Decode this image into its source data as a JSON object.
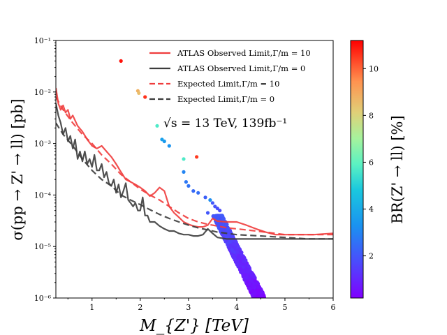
{
  "chart_data": {
    "type": "line+scatter",
    "xlabel": "M_{Z'} [TeV]",
    "ylabel": "σ(pp → Z' → ll) [pb]",
    "xlim": [
      0.25,
      6
    ],
    "ylim_log10": [
      -6,
      -1
    ],
    "x_ticks": [
      1,
      2,
      3,
      4,
      5,
      6
    ],
    "y_ticks": [
      {
        "exp": -6,
        "label": "10⁻⁶"
      },
      {
        "exp": -5,
        "label": "10⁻⁵"
      },
      {
        "exp": -4,
        "label": "10⁻⁴"
      },
      {
        "exp": -3,
        "label": "10⁻³"
      },
      {
        "exp": -2,
        "label": "10⁻²"
      },
      {
        "exp": -1,
        "label": "10⁻¹"
      }
    ],
    "annotation": "√s = 13 TeV, 139fb⁻¹",
    "colorbar": {
      "label": "BR(Z' → ll) [%]",
      "range": [
        0.2,
        11.2
      ],
      "ticks": [
        2,
        4,
        6,
        8,
        10
      ],
      "colormap": "rainbow"
    },
    "series": [
      {
        "name": "ATLAS Observed Limit,Γ/m = 10",
        "style": "solid",
        "color": "#ef3c3c",
        "points": [
          [
            0.25,
            0.012
          ],
          [
            0.3,
            0.006
          ],
          [
            0.35,
            0.0045
          ],
          [
            0.4,
            0.0055
          ],
          [
            0.45,
            0.004
          ],
          [
            0.5,
            0.0045
          ],
          [
            0.55,
            0.003
          ],
          [
            0.6,
            0.0035
          ],
          [
            0.7,
            0.0022
          ],
          [
            0.8,
            0.0017
          ],
          [
            0.9,
            0.0012
          ],
          [
            1.0,
            0.0009
          ],
          [
            1.1,
            0.0008
          ],
          [
            1.2,
            0.0009
          ],
          [
            1.3,
            0.0007
          ],
          [
            1.4,
            0.00055
          ],
          [
            1.5,
            0.0004
          ],
          [
            1.6,
            0.00028
          ],
          [
            1.7,
            0.0002
          ],
          [
            1.8,
            0.00018
          ],
          [
            1.9,
            0.00016
          ],
          [
            2.0,
            0.00014
          ],
          [
            2.1,
            0.00012
          ],
          [
            2.2,
            9.5e-05
          ],
          [
            2.3,
            0.00011
          ],
          [
            2.4,
            0.00014
          ],
          [
            2.5,
            0.00012
          ],
          [
            2.6,
            6e-05
          ],
          [
            2.7,
            4.5e-05
          ],
          [
            2.8,
            3.7e-05
          ],
          [
            2.9,
            3e-05
          ],
          [
            3.0,
            2.7e-05
          ],
          [
            3.1,
            2.5e-05
          ],
          [
            3.2,
            2.4e-05
          ],
          [
            3.3,
            2.4e-05
          ],
          [
            3.4,
            2.6e-05
          ],
          [
            3.5,
            3.5e-05
          ],
          [
            3.6,
            3.1e-05
          ],
          [
            3.8,
            3e-05
          ],
          [
            4.0,
            3e-05
          ],
          [
            4.2,
            2.6e-05
          ],
          [
            4.4,
            2.2e-05
          ],
          [
            4.6,
            1.9e-05
          ],
          [
            4.8,
            1.7e-05
          ],
          [
            5.0,
            1.7e-05
          ],
          [
            5.3,
            1.7e-05
          ],
          [
            5.6,
            1.7e-05
          ],
          [
            6.0,
            1.8e-05
          ]
        ]
      },
      {
        "name": "ATLAS Observed Limit,Γ/m = 0",
        "style": "solid",
        "color": "#3c3c3c",
        "points": [
          [
            0.25,
            0.006
          ],
          [
            0.3,
            0.0035
          ],
          [
            0.35,
            0.0025
          ],
          [
            0.4,
            0.0015
          ],
          [
            0.45,
            0.002
          ],
          [
            0.5,
            0.0011
          ],
          [
            0.55,
            0.0014
          ],
          [
            0.6,
            0.0008
          ],
          [
            0.65,
            0.0012
          ],
          [
            0.7,
            0.0005
          ],
          [
            0.75,
            0.0007
          ],
          [
            0.8,
            0.00045
          ],
          [
            0.85,
            0.0007
          ],
          [
            0.9,
            0.0004
          ],
          [
            0.95,
            0.0005
          ],
          [
            1.0,
            0.00035
          ],
          [
            1.05,
            0.0006
          ],
          [
            1.1,
            0.0003
          ],
          [
            1.15,
            0.0003
          ],
          [
            1.2,
            0.0004
          ],
          [
            1.25,
            0.00022
          ],
          [
            1.3,
            0.00028
          ],
          [
            1.35,
            0.00017
          ],
          [
            1.4,
            0.00015
          ],
          [
            1.45,
            0.0002
          ],
          [
            1.5,
            0.00011
          ],
          [
            1.55,
            0.00016
          ],
          [
            1.6,
            9e-05
          ],
          [
            1.65,
            0.00012
          ],
          [
            1.7,
            0.00017
          ],
          [
            1.75,
            8e-05
          ],
          [
            1.8,
            7e-05
          ],
          [
            1.85,
            6e-05
          ],
          [
            1.9,
            7e-05
          ],
          [
            1.95,
            5e-05
          ],
          [
            2.0,
            5e-05
          ],
          [
            2.05,
            9e-05
          ],
          [
            2.1,
            4e-05
          ],
          [
            2.15,
            4e-05
          ],
          [
            2.2,
            3e-05
          ],
          [
            2.3,
            3e-05
          ],
          [
            2.4,
            2.5e-05
          ],
          [
            2.5,
            2.2e-05
          ],
          [
            2.6,
            2e-05
          ],
          [
            2.7,
            2e-05
          ],
          [
            2.8,
            1.8e-05
          ],
          [
            2.9,
            1.7e-05
          ],
          [
            3.0,
            1.7e-05
          ],
          [
            3.1,
            1.6e-05
          ],
          [
            3.2,
            1.6e-05
          ],
          [
            3.3,
            1.7e-05
          ],
          [
            3.4,
            2.2e-05
          ],
          [
            3.5,
            1.8e-05
          ],
          [
            3.6,
            1.5e-05
          ],
          [
            3.8,
            1.4e-05
          ],
          [
            4.0,
            1.4e-05
          ],
          [
            4.5,
            1.4e-05
          ],
          [
            5.0,
            1.4e-05
          ],
          [
            5.5,
            1.4e-05
          ],
          [
            6.0,
            1.4e-05
          ]
        ]
      },
      {
        "name": "Expected Limit,Γ/m = 10",
        "style": "dashed",
        "color": "#ef3c3c",
        "points": [
          [
            0.25,
            0.008
          ],
          [
            0.4,
            0.0045
          ],
          [
            0.6,
            0.0025
          ],
          [
            0.8,
            0.0015
          ],
          [
            1.0,
            0.001
          ],
          [
            1.2,
            0.0006
          ],
          [
            1.4,
            0.0004
          ],
          [
            1.6,
            0.00025
          ],
          [
            1.8,
            0.00018
          ],
          [
            2.0,
            0.00013
          ],
          [
            2.2,
            0.0001
          ],
          [
            2.4,
            8e-05
          ],
          [
            2.6,
            6e-05
          ],
          [
            2.8,
            4.5e-05
          ],
          [
            3.0,
            3.5e-05
          ],
          [
            3.2,
            3e-05
          ],
          [
            3.4,
            2.7e-05
          ],
          [
            3.6,
            2.5e-05
          ],
          [
            3.8,
            2.3e-05
          ],
          [
            4.0,
            2.2e-05
          ],
          [
            4.2,
            2.1e-05
          ],
          [
            4.4,
            2e-05
          ],
          [
            4.6,
            1.9e-05
          ],
          [
            4.8,
            1.8e-05
          ],
          [
            5.0,
            1.7e-05
          ],
          [
            5.5,
            1.7e-05
          ],
          [
            6.0,
            1.7e-05
          ]
        ]
      },
      {
        "name": "Expected Limit,Γ/m = 0",
        "style": "dashed",
        "color": "#3c3c3c",
        "points": [
          [
            0.25,
            0.0025
          ],
          [
            0.4,
            0.0015
          ],
          [
            0.6,
            0.0009
          ],
          [
            0.8,
            0.0005
          ],
          [
            1.0,
            0.0003
          ],
          [
            1.2,
            0.0002
          ],
          [
            1.4,
            0.00015
          ],
          [
            1.6,
            0.0001
          ],
          [
            1.8,
            8e-05
          ],
          [
            2.0,
            6.5e-05
          ],
          [
            2.2,
            5.2e-05
          ],
          [
            2.4,
            4.2e-05
          ],
          [
            2.6,
            3.5e-05
          ],
          [
            2.8,
            3e-05
          ],
          [
            3.0,
            2.6e-05
          ],
          [
            3.2,
            2.3e-05
          ],
          [
            3.4,
            2.1e-05
          ],
          [
            3.6,
            1.9e-05
          ],
          [
            3.8,
            1.8e-05
          ],
          [
            4.0,
            1.7e-05
          ],
          [
            4.5,
            1.6e-05
          ],
          [
            5.0,
            1.5e-05
          ],
          [
            5.5,
            1.4e-05
          ],
          [
            6.0,
            1.4e-05
          ]
        ]
      }
    ],
    "scatter": {
      "name": "Model points (color = BR(Z' → ll) [%])",
      "points": [
        [
          1.6,
          0.04,
          11.0
        ],
        [
          1.95,
          0.0105,
          8.8
        ],
        [
          1.97,
          0.0095,
          8.5
        ],
        [
          2.1,
          0.008,
          10.6
        ],
        [
          2.35,
          0.0022,
          5.7
        ],
        [
          2.45,
          0.0012,
          3.7
        ],
        [
          2.5,
          0.0011,
          3.5
        ],
        [
          2.6,
          0.0009,
          3.3
        ],
        [
          2.9,
          0.0005,
          5.7
        ],
        [
          3.17,
          0.00055,
          10.5
        ],
        [
          2.9,
          0.00028,
          3.0
        ],
        [
          2.95,
          0.00018,
          2.7
        ],
        [
          3.0,
          0.00015,
          2.6
        ],
        [
          3.1,
          0.00012,
          2.4
        ],
        [
          3.2,
          0.00011,
          2.5
        ],
        [
          3.35,
          9e-05,
          2.2
        ],
        [
          3.5,
          7e-05,
          2.0
        ],
        [
          3.45,
          8e-05,
          3.2
        ],
        [
          3.55,
          6e-05,
          1.9
        ],
        [
          3.6,
          5.5e-05,
          1.8
        ],
        [
          3.65,
          5e-05,
          1.7
        ],
        [
          3.4,
          4.5e-05,
          2.0
        ],
        [
          3.7,
          4e-05,
          2.1
        ]
      ],
      "band": {
        "x_top_start": 3.5,
        "x_top_end": 3.7,
        "x_bottom_start": 4.35,
        "x_bottom_end": 4.6,
        "y_top": 4e-05,
        "y_bottom": 1e-06,
        "br_top": 2.0,
        "br_bottom": 0.3
      }
    },
    "legend_position": "upper-right"
  }
}
